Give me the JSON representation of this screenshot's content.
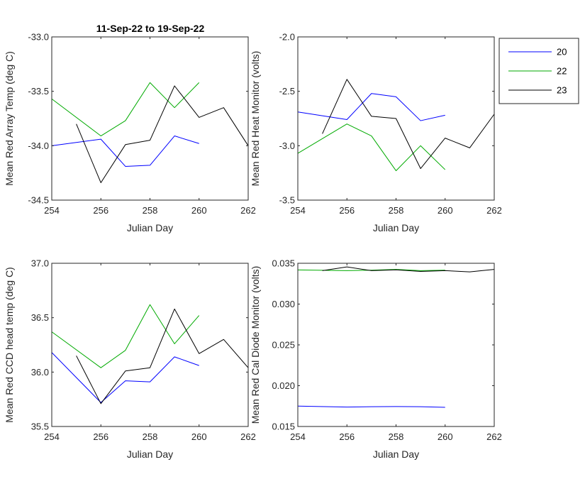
{
  "figure_title": "11-Sep-22 to 19-Sep-22",
  "legend": {
    "entries": [
      {
        "name": "20",
        "color": "#0000FF"
      },
      {
        "name": "22",
        "color": "#00AA00"
      },
      {
        "name": "23",
        "color": "#000000"
      }
    ]
  },
  "chart_data": [
    {
      "type": "line",
      "title": "11-Sep-22 to 19-Sep-22",
      "xlabel": "Julian Day",
      "ylabel": "Mean Red Array Temp (deg C)",
      "xlim": [
        254,
        262
      ],
      "ylim": [
        -34.5,
        -33.0
      ],
      "xticks": [
        254,
        256,
        258,
        260,
        262
      ],
      "yticks": [
        -34.5,
        -34.0,
        -33.5,
        -33.0
      ],
      "ytick_labels": [
        "-34.5",
        "-34.0",
        "-33.5",
        "-33.0"
      ],
      "grid": false,
      "series": [
        {
          "name": "20",
          "color": "#0000FF",
          "x": [
            254,
            256,
            257,
            258,
            259,
            260
          ],
          "y": [
            -34.0,
            -33.94,
            -34.19,
            -34.18,
            -33.91,
            -33.98
          ]
        },
        {
          "name": "22",
          "color": "#00AA00",
          "x": [
            254,
            256,
            257,
            258,
            259,
            260
          ],
          "y": [
            -33.57,
            -33.91,
            -33.77,
            -33.42,
            -33.65,
            -33.42
          ]
        },
        {
          "name": "23",
          "color": "#000000",
          "x": [
            255,
            256,
            257,
            258,
            259,
            260,
            261,
            262
          ],
          "y": [
            -33.8,
            -34.34,
            -33.99,
            -33.95,
            -33.45,
            -33.74,
            -33.65,
            -34.0
          ]
        }
      ]
    },
    {
      "type": "line",
      "xlabel": "Julian Day",
      "ylabel": "Mean Red Heat Monitor (volts)",
      "xlim": [
        254,
        262
      ],
      "ylim": [
        -3.5,
        -2.0
      ],
      "xticks": [
        254,
        256,
        258,
        260,
        262
      ],
      "yticks": [
        -3.5,
        -3.0,
        -2.5,
        -2.0
      ],
      "ytick_labels": [
        "-3.5",
        "-3.0",
        "-2.5",
        "-2.0"
      ],
      "grid": false,
      "series": [
        {
          "name": "20",
          "color": "#0000FF",
          "x": [
            254,
            256,
            257,
            258,
            259,
            260
          ],
          "y": [
            -2.69,
            -2.76,
            -2.52,
            -2.55,
            -2.77,
            -2.72
          ]
        },
        {
          "name": "22",
          "color": "#00AA00",
          "x": [
            254,
            256,
            257,
            258,
            259,
            260
          ],
          "y": [
            -3.07,
            -2.8,
            -2.91,
            -3.23,
            -3.0,
            -3.22
          ]
        },
        {
          "name": "23",
          "color": "#000000",
          "x": [
            255,
            256,
            257,
            258,
            259,
            260,
            261,
            262
          ],
          "y": [
            -2.89,
            -2.39,
            -2.73,
            -2.75,
            -3.21,
            -2.93,
            -3.02,
            -2.71
          ]
        }
      ]
    },
    {
      "type": "line",
      "xlabel": "Julian Day",
      "ylabel": "Mean Red CCD head temp (deg C)",
      "xlim": [
        254,
        262
      ],
      "ylim": [
        35.5,
        37.0
      ],
      "xticks": [
        254,
        256,
        258,
        260,
        262
      ],
      "yticks": [
        35.5,
        36.0,
        36.5,
        37.0
      ],
      "ytick_labels": [
        "35.5",
        "36.0",
        "36.5",
        "37.0"
      ],
      "grid": false,
      "series": [
        {
          "name": "20",
          "color": "#0000FF",
          "x": [
            254,
            256,
            257,
            258,
            259,
            260
          ],
          "y": [
            36.18,
            35.72,
            35.92,
            35.91,
            36.14,
            36.06
          ]
        },
        {
          "name": "22",
          "color": "#00AA00",
          "x": [
            254,
            256,
            257,
            258,
            259,
            260
          ],
          "y": [
            36.37,
            36.04,
            36.2,
            36.62,
            36.26,
            36.52
          ]
        },
        {
          "name": "23",
          "color": "#000000",
          "x": [
            255,
            256,
            257,
            258,
            259,
            260,
            261,
            262
          ],
          "y": [
            36.15,
            35.71,
            36.01,
            36.04,
            36.58,
            36.17,
            36.3,
            36.04
          ]
        }
      ]
    },
    {
      "type": "line",
      "xlabel": "Julian Day",
      "ylabel": "Mean Red Cal Diode Monitor (volts)",
      "xlim": [
        254,
        262
      ],
      "ylim": [
        0.015,
        0.035
      ],
      "xticks": [
        254,
        256,
        258,
        260,
        262
      ],
      "yticks": [
        0.015,
        0.02,
        0.025,
        0.03,
        0.035
      ],
      "ytick_labels": [
        "0.015",
        "0.020",
        "0.025",
        "0.030",
        "0.035"
      ],
      "grid": false,
      "series": [
        {
          "name": "20",
          "color": "#0000FF",
          "x": [
            254,
            256,
            257,
            258,
            259,
            260
          ],
          "y": [
            0.0175,
            0.01738,
            0.01742,
            0.01745,
            0.01742,
            0.01735
          ]
        },
        {
          "name": "22",
          "color": "#00AA00",
          "x": [
            254,
            256,
            257,
            258,
            259,
            260
          ],
          "y": [
            0.03418,
            0.0341,
            0.03415,
            0.03425,
            0.0341,
            0.03415
          ]
        },
        {
          "name": "23",
          "color": "#000000",
          "x": [
            255,
            256,
            257,
            258,
            259,
            260,
            261,
            262
          ],
          "y": [
            0.0341,
            0.03455,
            0.0341,
            0.0342,
            0.034,
            0.0341,
            0.03395,
            0.03425
          ]
        }
      ]
    }
  ]
}
